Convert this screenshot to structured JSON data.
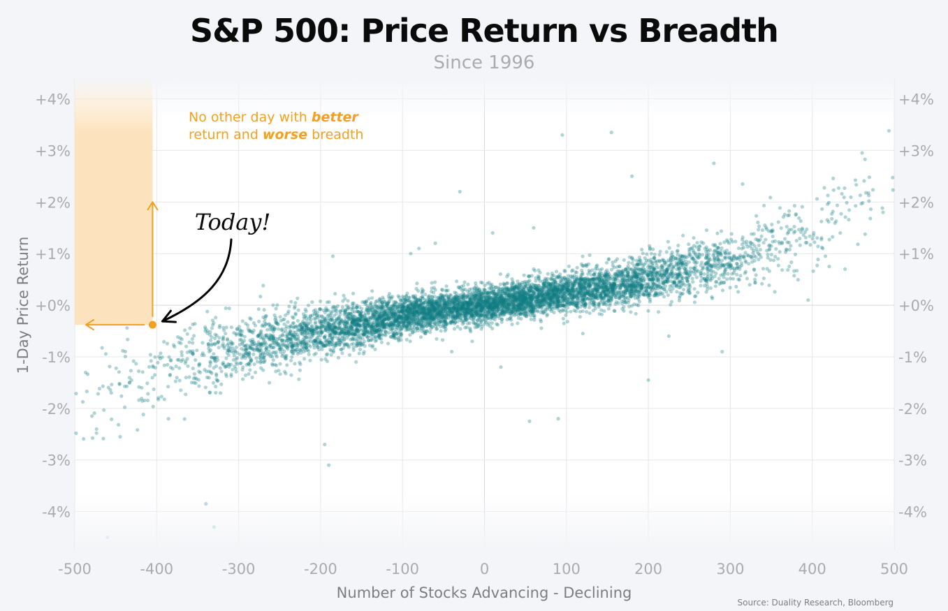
{
  "chart_data": {
    "type": "scatter",
    "title": "S&P 500: Price Return vs Breadth",
    "subtitle": "Since 1996",
    "xlabel": "Number of Stocks Advancing - Declining",
    "ylabel": "1-Day Price Return",
    "xlim": [
      -500,
      500
    ],
    "ylim": [
      -4.75,
      4.4
    ],
    "xticks": [
      {
        "value": -500,
        "label": "-500"
      },
      {
        "value": -400,
        "label": "-400"
      },
      {
        "value": -300,
        "label": "-300"
      },
      {
        "value": -200,
        "label": "-200"
      },
      {
        "value": -100,
        "label": "-100"
      },
      {
        "value": 0,
        "label": "0"
      },
      {
        "value": 100,
        "label": "100"
      },
      {
        "value": 200,
        "label": "200"
      },
      {
        "value": 300,
        "label": "300"
      },
      {
        "value": 400,
        "label": "400"
      },
      {
        "value": 500,
        "label": "500"
      }
    ],
    "yticks": [
      {
        "value": 4,
        "label": "+4%"
      },
      {
        "value": 3,
        "label": "+3%"
      },
      {
        "value": 2,
        "label": "+2%"
      },
      {
        "value": 1,
        "label": "+1%"
      },
      {
        "value": 0,
        "label": "+0%"
      },
      {
        "value": -1,
        "label": "-1%"
      },
      {
        "value": -2,
        "label": "-2%"
      },
      {
        "value": -3,
        "label": "-3%"
      },
      {
        "value": -4,
        "label": "-4%"
      }
    ],
    "grid": true,
    "trend_points": [
      [
        -500,
        -1.9
      ],
      [
        -400,
        -1.3
      ],
      [
        -300,
        -0.85
      ],
      [
        -200,
        -0.5
      ],
      [
        -100,
        -0.2
      ],
      [
        0,
        0
      ],
      [
        100,
        0.25
      ],
      [
        200,
        0.5
      ],
      [
        300,
        0.85
      ],
      [
        400,
        1.35
      ],
      [
        500,
        2.4
      ]
    ],
    "spread_points": [
      [
        -500,
        0.8
      ],
      [
        -300,
        0.5
      ],
      [
        -100,
        0.3
      ],
      [
        0,
        0.28
      ],
      [
        100,
        0.3
      ],
      [
        300,
        0.45
      ],
      [
        500,
        0.75
      ]
    ],
    "outliers": [
      [
        -30,
        2.2
      ],
      [
        155,
        3.35
      ],
      [
        95,
        3.3
      ],
      [
        -185,
        0.95
      ],
      [
        -270,
        0.38
      ],
      [
        -190,
        -3.1
      ],
      [
        -195,
        -2.7
      ],
      [
        55,
        -2.25
      ],
      [
        90,
        -2.2
      ],
      [
        200,
        -1.45
      ],
      [
        290,
        -0.9
      ],
      [
        225,
        -0.6
      ],
      [
        -340,
        -3.85
      ],
      [
        -330,
        -4.3
      ],
      [
        -460,
        -4.5
      ],
      [
        -15,
        -0.7
      ],
      [
        120,
        -0.55
      ],
      [
        -90,
        1.0
      ],
      [
        -60,
        1.2
      ],
      [
        60,
        0.7
      ],
      [
        -40,
        -0.9
      ],
      [
        280,
        2.75
      ],
      [
        315,
        2.35
      ],
      [
        440,
        0.7
      ],
      [
        395,
        0.1
      ],
      [
        -80,
        1.1
      ],
      [
        10,
        1.4
      ],
      [
        20,
        -1.2
      ],
      [
        60,
        1.5
      ],
      [
        180,
        2.5
      ]
    ],
    "point_count": 6500,
    "point_color": "#0f7c82",
    "highlight": {
      "point": {
        "x": -405,
        "y": -0.38
      },
      "label": "Today!",
      "color": "#f2a01f",
      "region": {
        "x_max": -405,
        "y_min": -0.38
      },
      "annotation_parts": [
        {
          "text": "No other day with ",
          "emphasis": false
        },
        {
          "text": "better",
          "emphasis": true
        },
        {
          "br": true
        },
        {
          "text": "return and ",
          "emphasis": false
        },
        {
          "text": "worse",
          "emphasis": true
        },
        {
          "text": " breadth",
          "emphasis": false
        }
      ]
    },
    "source": "Source: Duality Research, Bloomberg"
  },
  "colors": {
    "background": "#f4f5f8",
    "plot_background": "#ffffff",
    "grid": "#e6e7eb",
    "zero_line": "#d6d8dd",
    "tick_text": "#a9abb1",
    "axis_text": "#7b7d83",
    "title_text": "#0a0a0a",
    "subtitle_text": "#a9abb1",
    "highlight_fill": "#fde3bd",
    "highlight": "#f2a01f",
    "arrow": "#000000"
  }
}
